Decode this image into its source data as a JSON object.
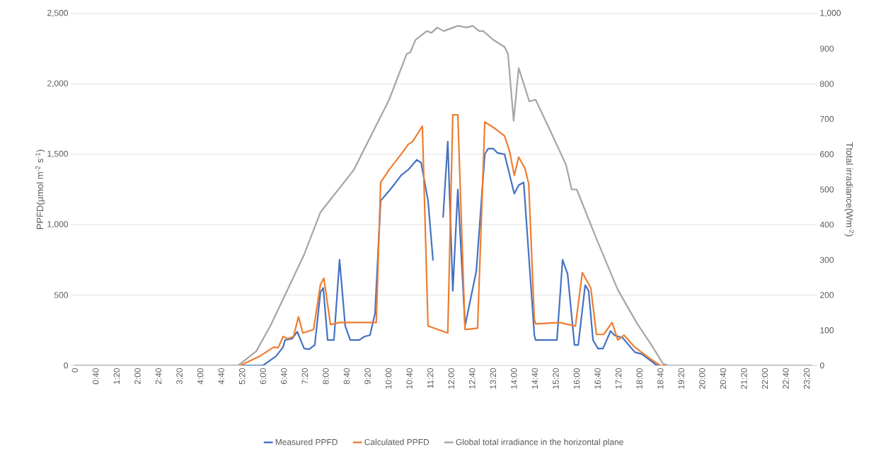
{
  "chart_data": {
    "type": "line",
    "ylabel": "PPFD(μmol m$^{-2}$ s$^{-1}$)",
    "y2label": "Ttotal irradiance(Wm$^{-2}$)",
    "xlim": [
      -0.13,
      23.67
    ],
    "xticks": [
      {
        "value": 0,
        "label": "0"
      },
      {
        "value": 0.6667,
        "label": "0:40"
      },
      {
        "value": 1.3333,
        "label": "1:20"
      },
      {
        "value": 2,
        "label": "2:00"
      },
      {
        "value": 2.6667,
        "label": "2:40"
      },
      {
        "value": 3.3333,
        "label": "3:20"
      },
      {
        "value": 4,
        "label": "4:00"
      },
      {
        "value": 4.6667,
        "label": "4:40"
      },
      {
        "value": 5.3333,
        "label": "5:20"
      },
      {
        "value": 6,
        "label": "6:00"
      },
      {
        "value": 6.6667,
        "label": "6:40"
      },
      {
        "value": 7.3333,
        "label": "7:20"
      },
      {
        "value": 8,
        "label": "8:00"
      },
      {
        "value": 8.6667,
        "label": "8:40"
      },
      {
        "value": 9.3333,
        "label": "9:20"
      },
      {
        "value": 10,
        "label": "10:00"
      },
      {
        "value": 10.6667,
        "label": "10:40"
      },
      {
        "value": 11.3333,
        "label": "11:20"
      },
      {
        "value": 12,
        "label": "12:00"
      },
      {
        "value": 12.6667,
        "label": "12:40"
      },
      {
        "value": 13.3333,
        "label": "13:20"
      },
      {
        "value": 14,
        "label": "14:00"
      },
      {
        "value": 14.6667,
        "label": "14:40"
      },
      {
        "value": 15.3333,
        "label": "15:20"
      },
      {
        "value": 16,
        "label": "16:00"
      },
      {
        "value": 16.6667,
        "label": "16:40"
      },
      {
        "value": 17.3333,
        "label": "17:20"
      },
      {
        "value": 18,
        "label": "18:00"
      },
      {
        "value": 18.6667,
        "label": "18:40"
      },
      {
        "value": 19.3333,
        "label": "19:20"
      },
      {
        "value": 20,
        "label": "20:00"
      },
      {
        "value": 20.6667,
        "label": "20:40"
      },
      {
        "value": 21.3333,
        "label": "21:20"
      },
      {
        "value": 22,
        "label": "22:00"
      },
      {
        "value": 22.6667,
        "label": "22:40"
      },
      {
        "value": 23.3333,
        "label": "23:20"
      }
    ],
    "ylim": [
      0,
      2500
    ],
    "yticks": [
      0,
      500,
      {
        "value": 1000,
        "label": "1,000"
      },
      {
        "value": 1500,
        "label": "1,500"
      },
      {
        "value": 2000,
        "label": "2,000"
      },
      {
        "value": 2500,
        "label": "2,500"
      }
    ],
    "y2lim": [
      0,
      1000
    ],
    "y2ticks": [
      0,
      100,
      200,
      300,
      400,
      500,
      600,
      700,
      800,
      900,
      {
        "value": 1000,
        "label": "1,000"
      }
    ],
    "grid": "y",
    "legend": "bottom",
    "marker": "none",
    "line_style": "solid",
    "series": [
      {
        "name": "Measured PPFD",
        "color": "#4472c4",
        "x": [
          0,
          6.0,
          6.41,
          6.64,
          6.7,
          6.93,
          7.09,
          7.31,
          7.47,
          7.65,
          7.83,
          7.92,
          8.06,
          8.26,
          8.44,
          8.62,
          8.78,
          9.07,
          9.23,
          9.41,
          9.57,
          9.75,
          10.02,
          10.2,
          10.4,
          10.63,
          10.9,
          11.04,
          11.26,
          11.42,
          11.6,
          11.74,
          11.89,
          12.05,
          12.21,
          12.44,
          12.8,
          13.07,
          13.18,
          13.34,
          13.47,
          13.7,
          14.01,
          14.15,
          14.31,
          14.65,
          14.69,
          15.37,
          15.55,
          15.71,
          15.93,
          16.05,
          16.27,
          16.38,
          16.52,
          16.68,
          16.84,
          17.08,
          17.2,
          17.47,
          17.85,
          18.08,
          18.53,
          18.66,
          23.5
        ],
        "values": [
          0,
          0,
          65,
          130,
          180,
          190,
          240,
          120,
          115,
          145,
          520,
          550,
          180,
          180,
          750,
          280,
          180,
          180,
          205,
          215,
          370,
          1170,
          1240,
          1290,
          1350,
          1390,
          1460,
          1440,
          1170,
          745,
          null,
          1050,
          1590,
          530,
          1250,
          280,
          670,
          1500,
          1540,
          1540,
          1510,
          1500,
          1220,
          1280,
          1300,
          215,
          180,
          180,
          750,
          650,
          145,
          145,
          570,
          530,
          180,
          120,
          120,
          245,
          215,
          195,
          95,
          80,
          5,
          0,
          0
        ]
      },
      {
        "name": "Calculated PPFD",
        "color": "#ed7d31",
        "x": [
          0,
          5.28,
          5.89,
          6.34,
          6.48,
          6.64,
          6.79,
          6.97,
          7.13,
          7.27,
          7.61,
          7.83,
          7.94,
          8.15,
          8.44,
          9.61,
          9.75,
          10.02,
          10.4,
          10.63,
          10.77,
          11.08,
          11.26,
          11.89,
          12.05,
          12.21,
          12.44,
          12.84,
          13.07,
          13.41,
          13.7,
          13.86,
          14.01,
          14.15,
          14.35,
          14.47,
          14.65,
          14.69,
          15.44,
          15.96,
          16.18,
          16.45,
          16.63,
          16.86,
          17.13,
          17.31,
          17.51,
          17.85,
          18.3,
          18.66,
          23.5
        ],
        "values": [
          0,
          0,
          65,
          130,
          125,
          205,
          190,
          205,
          345,
          230,
          255,
          575,
          620,
          290,
          305,
          305,
          1300,
          1390,
          1500,
          1570,
          1590,
          1700,
          280,
          230,
          1780,
          1780,
          255,
          265,
          1730,
          1680,
          1630,
          1520,
          1350,
          1480,
          1400,
          1290,
          330,
          295,
          305,
          280,
          660,
          550,
          220,
          220,
          305,
          180,
          215,
          130,
          55,
          0,
          0
        ]
      },
      {
        "name": "Global total irradiance in the horizontal plane",
        "color": "#a5a5a5",
        "axis": "y2",
        "x": [
          0,
          5.21,
          5.78,
          6.25,
          7.31,
          7.83,
          8.89,
          10.02,
          10.58,
          10.7,
          10.86,
          11.22,
          11.37,
          11.55,
          11.76,
          12.21,
          12.5,
          12.68,
          12.89,
          13.02,
          13.34,
          13.7,
          13.81,
          13.99,
          14.15,
          14.49,
          14.69,
          15.14,
          15.66,
          15.84,
          16.0,
          16.63,
          17.31,
          17.92,
          18.37,
          18.75,
          18.93,
          23.5
        ],
        "values": [
          0,
          0,
          40,
          115,
          315,
          435,
          555,
          755,
          885,
          890,
          925,
          950,
          945,
          960,
          950,
          965,
          960,
          965,
          950,
          950,
          925,
          905,
          885,
          695,
          845,
          750,
          755,
          670,
          570,
          500,
          500,
          360,
          215,
          120,
          60,
          5,
          0,
          0
        ]
      }
    ]
  }
}
